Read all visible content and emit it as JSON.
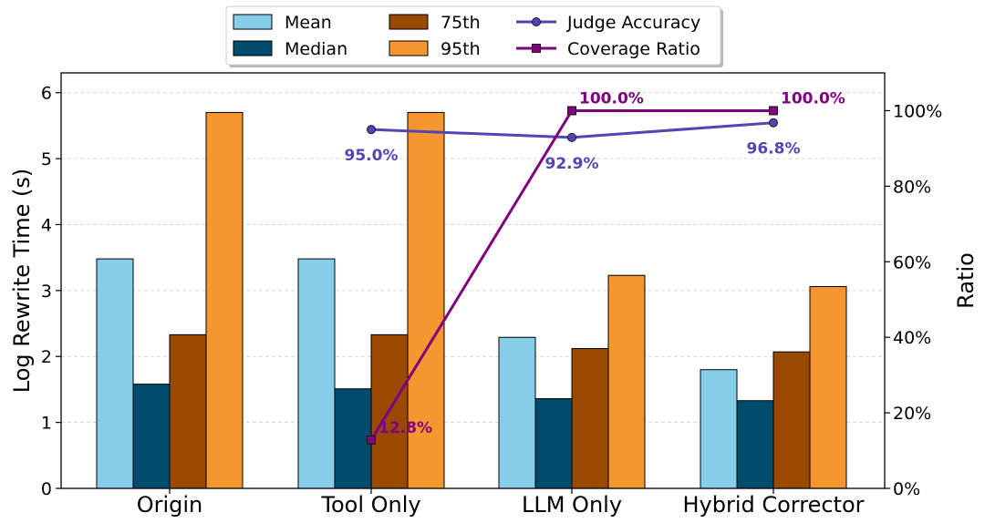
{
  "chart_data": {
    "type": "bar",
    "categories": [
      "Origin",
      "Tool Only",
      "LLM Only",
      "Hybrid Corrector"
    ],
    "series": [
      {
        "name": "Mean",
        "values": [
          3.48,
          3.48,
          2.29,
          1.8
        ],
        "color": "#87ceeb"
      },
      {
        "name": "Median",
        "values": [
          1.58,
          1.51,
          1.36,
          1.33
        ],
        "color": "#004c6d"
      },
      {
        "name": "75th",
        "values": [
          2.33,
          2.33,
          2.12,
          2.07
        ],
        "color": "#994a00"
      },
      {
        "name": "95th",
        "values": [
          5.7,
          5.7,
          3.23,
          3.06
        ],
        "color": "#f5962f"
      }
    ],
    "ylabel": "Log Rewrite Time (s)",
    "ylim": [
      0,
      6.3
    ],
    "yticks": [
      "0",
      "1",
      "2",
      "3",
      "4",
      "5",
      "6"
    ],
    "y2label": "Ratio",
    "y2lim": [
      0,
      1.1
    ],
    "y2ticks": [
      "0%",
      "20%",
      "40%",
      "60%",
      "80%",
      "100%"
    ],
    "lines": [
      {
        "name": "Judge Accuracy",
        "categories": [
          "Tool Only",
          "LLM Only",
          "Hybrid Corrector"
        ],
        "values": [
          0.95,
          0.929,
          0.968
        ],
        "labels": [
          "95.0%",
          "92.9%",
          "96.8%"
        ],
        "color": "#5046b4",
        "marker": "circle"
      },
      {
        "name": "Coverage Ratio",
        "categories": [
          "Tool Only",
          "LLM Only",
          "Hybrid Corrector"
        ],
        "values": [
          0.128,
          1.0,
          1.0
        ],
        "labels": [
          "12.8%",
          "100.0%",
          "100.0%"
        ],
        "color": "#800080",
        "marker": "square"
      }
    ],
    "grid": "horizontal dashed",
    "legend": "top-center"
  }
}
